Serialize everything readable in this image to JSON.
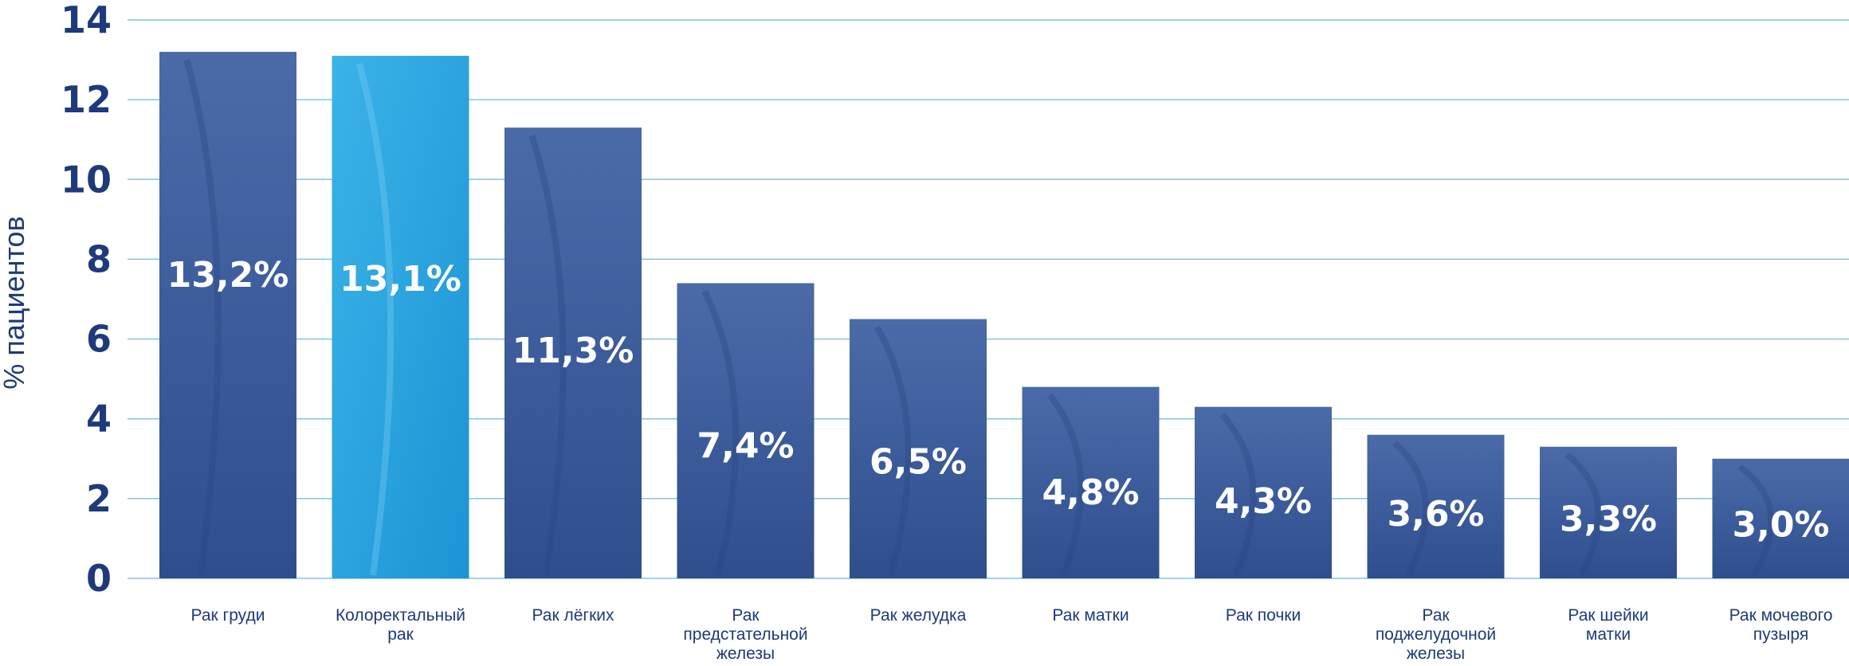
{
  "chart_data": {
    "type": "bar",
    "ylabel": "% пациентов",
    "ylim": [
      0,
      14
    ],
    "yticks": [
      0,
      2,
      4,
      6,
      8,
      10,
      12,
      14
    ],
    "grid": true,
    "categories": [
      [
        "Рак груди"
      ],
      [
        "Колоректальный",
        "рак"
      ],
      [
        "Рак лёгких"
      ],
      [
        "Рак",
        "предстательной",
        "железы"
      ],
      [
        "Рак желудка"
      ],
      [
        "Рак матки"
      ],
      [
        "Рак почки"
      ],
      [
        "Рак",
        "поджелудочной",
        "железы"
      ],
      [
        "Рак шейки",
        "матки"
      ],
      [
        "Рак мочевого",
        "пузыря"
      ]
    ],
    "values": [
      13.2,
      13.1,
      11.3,
      7.4,
      6.5,
      4.8,
      4.3,
      3.6,
      3.3,
      3.0
    ],
    "value_labels": [
      "13,2%",
      "13,1%",
      "11,3%",
      "7,4%",
      "6,5%",
      "4,8%",
      "4,3%",
      "3,6%",
      "3,3%",
      "3,0%"
    ],
    "colors": {
      "bar": "#3f5f9e",
      "highlight": "#29a9e1",
      "axis_text": "#1e3a7b",
      "grid": "#7fc6e0"
    },
    "highlight_index": 1
  }
}
